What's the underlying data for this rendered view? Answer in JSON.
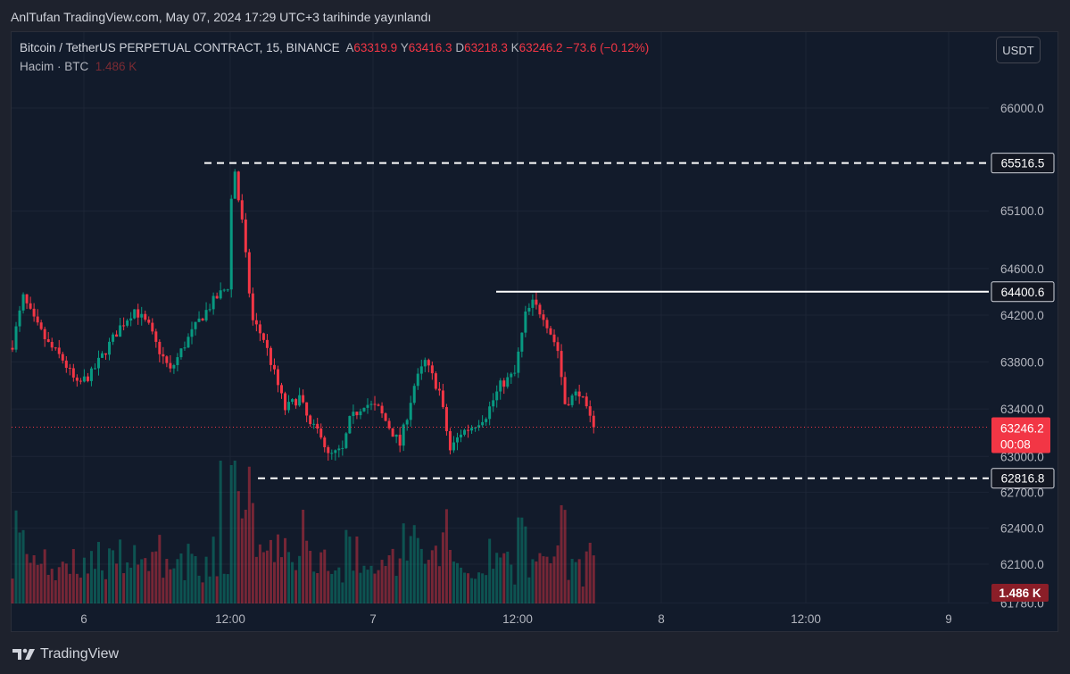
{
  "header": {
    "published": "AnlTufan TradingView.com, May 07, 2024 17:29 UTC+3 tarihinde yayınlandı"
  },
  "legend": {
    "symbol": "Bitcoin / TetherUS PERPETUAL CONTRACT, 15, BINANCE",
    "open_label": "A",
    "open": "63319.9",
    "high_label": "Y",
    "high": "63416.3",
    "low_label": "D",
    "low": "63218.3",
    "close_label": "K",
    "close": "63246.2",
    "change": "−73.6 (−0.12%)",
    "volume_label": "Hacim · BTC",
    "volume_value": "1.486 K"
  },
  "currency_button": "USDT",
  "brand": "TradingView",
  "colors": {
    "up": "#089981",
    "down": "#f23645",
    "background": "#121b2b",
    "grid": "#1c2536",
    "axis_text": "#b2b5be",
    "level_line": "#ffffff",
    "price_badge": "#f23645",
    "volume_badge": "#8b1e28"
  },
  "chart_data": {
    "type": "candlestick",
    "symbol": "BTCUSDT.P",
    "interval": "15",
    "y_axis_ticks": [
      "66000.0",
      "65100.0",
      "64600.0",
      "64200.0",
      "63800.0",
      "63400.0",
      "63000.0",
      "62700.0",
      "62400.0",
      "62100.0",
      "61780.0"
    ],
    "y_axis_scale": "log",
    "x_axis_ticks": [
      "6",
      "12:00",
      "7",
      "12:00",
      "8",
      "12:00",
      "9"
    ],
    "levels": [
      {
        "price": 65516.5,
        "label": "65516.5",
        "style": "dashed"
      },
      {
        "price": 64400.6,
        "label": "64400.6",
        "style": "solid"
      },
      {
        "price": 62816.8,
        "label": "62816.8",
        "style": "dashed"
      }
    ],
    "last_price": {
      "value": 63246.2,
      "label": "63246.2",
      "countdown": "00:08"
    },
    "last_volume": {
      "label": "1.486 K"
    },
    "price_path": [
      [
        0,
        63950
      ],
      [
        3,
        64350
      ],
      [
        6,
        64150
      ],
      [
        10,
        63950
      ],
      [
        14,
        63820
      ],
      [
        18,
        63600
      ],
      [
        22,
        63700
      ],
      [
        26,
        63900
      ],
      [
        30,
        64100
      ],
      [
        34,
        64250
      ],
      [
        38,
        64100
      ],
      [
        40,
        63950
      ],
      [
        44,
        63720
      ],
      [
        48,
        63950
      ],
      [
        52,
        64150
      ],
      [
        56,
        64320
      ],
      [
        60,
        64450
      ],
      [
        61,
        65200
      ],
      [
        62,
        65450
      ],
      [
        63,
        65200
      ],
      [
        64,
        65000
      ],
      [
        65,
        64700
      ],
      [
        66,
        64400
      ],
      [
        67,
        64150
      ],
      [
        70,
        64000
      ],
      [
        73,
        63700
      ],
      [
        76,
        63400
      ],
      [
        80,
        63500
      ],
      [
        83,
        63250
      ],
      [
        86,
        63200
      ],
      [
        88,
        63000
      ],
      [
        92,
        63050
      ],
      [
        94,
        63300
      ],
      [
        98,
        63450
      ],
      [
        102,
        63400
      ],
      [
        105,
        63250
      ],
      [
        108,
        63100
      ],
      [
        112,
        63600
      ],
      [
        115,
        63800
      ],
      [
        119,
        63550
      ],
      [
        122,
        63050
      ],
      [
        125,
        63200
      ],
      [
        128,
        63250
      ],
      [
        132,
        63350
      ],
      [
        136,
        63600
      ],
      [
        140,
        63700
      ],
      [
        143,
        64200
      ],
      [
        145,
        64300
      ],
      [
        148,
        64200
      ],
      [
        152,
        63900
      ],
      [
        154,
        63450
      ],
      [
        158,
        63550
      ],
      [
        160,
        63380
      ],
      [
        162,
        63246
      ]
    ]
  }
}
